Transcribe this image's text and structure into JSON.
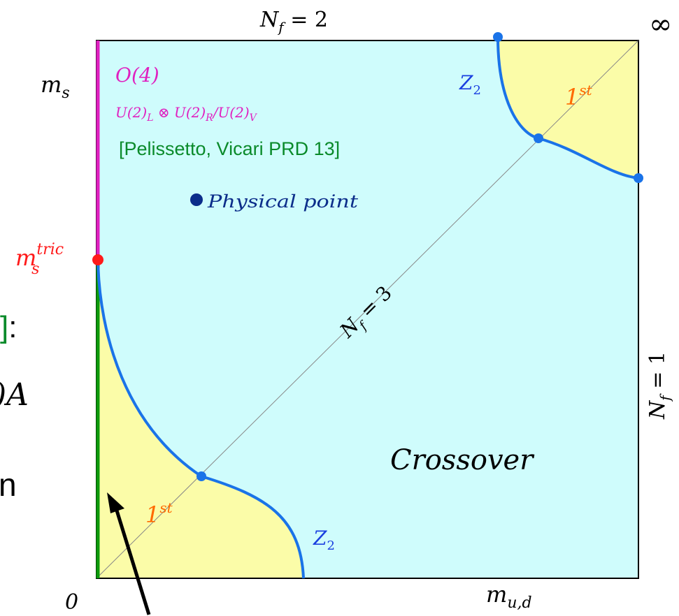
{
  "diagram": {
    "corner_top_right": "∞",
    "origin": "0",
    "top_label": {
      "base": "N",
      "sub": "f",
      "rest": " = 2"
    },
    "left_axis_label": {
      "base": "m",
      "sub": "s"
    },
    "bottom_axis_label": {
      "base": "m",
      "sub": "u,d"
    },
    "right_label": {
      "base": "N",
      "sub": "f",
      "rest": " = 1"
    },
    "diagonal_label": {
      "base": "N",
      "sub": "f",
      "rest": " = 3"
    },
    "tricritical_label": {
      "base": "m",
      "sub": "s",
      "sup": "tric"
    },
    "o4_label": "O(4)",
    "symmetry_label": {
      "p1": "U(2)",
      "s1": "L",
      "p2": " ⊗ U(2)",
      "s2": "R",
      "p3": "/U(2)",
      "s3": "V"
    },
    "reference": "[Pelissetto, Vicari PRD 13]",
    "physical_point": "Physical point",
    "crossover": "Crossover",
    "first_order_top": {
      "base": "1",
      "sup": "st"
    },
    "first_order_bottom": {
      "base": "1",
      "sup": "st"
    },
    "z2_top": {
      "base": "Z",
      "sub": "2"
    },
    "z2_bottom": {
      "base": "Z",
      "sub": "2"
    },
    "fragments": {
      "bracket_colon": "]:",
      "a_subscript": ")A",
      "letter_n": "n"
    },
    "colors": {
      "crossover_region": "#cffcfc",
      "first_order_region": "#fbfca8",
      "z2_line": "#1a73e8",
      "o4_line": "#e020c0",
      "green_line": "#0c9a0c",
      "tricritical_point": "#ff1a1a",
      "physical_point": "#0b2d8a",
      "first_order_text": "#ff6a00",
      "reference_text": "#0a8a2a"
    }
  }
}
